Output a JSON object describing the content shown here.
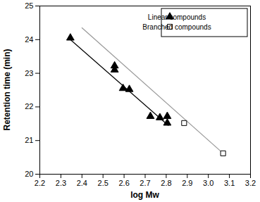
{
  "chart_data": {
    "type": "scatter",
    "x_label": "log Mw",
    "y_label": "Retention time (min)",
    "xlim": [
      2.2,
      3.2
    ],
    "xticks": [
      2.2,
      2.3,
      2.4,
      2.5,
      2.6,
      2.7,
      2.8,
      2.9,
      {
        "value": 3,
        "label": "3.0"
      },
      3.1,
      3.2
    ],
    "ylim": [
      20,
      25
    ],
    "yticks": [
      20,
      21,
      22,
      23,
      24,
      25
    ],
    "grid": false,
    "legend": "upper right",
    "series": [
      {
        "name": "Linear compounds",
        "marker": "triangle",
        "color": "#000000",
        "x": [
          2.345,
          2.555,
          2.555,
          2.595,
          2.625,
          2.725,
          2.77,
          2.805,
          2.805
        ],
        "values": [
          24.05,
          23.22,
          23.1,
          22.55,
          22.52,
          21.72,
          21.68,
          21.72,
          21.52
        ]
      },
      {
        "name": "Branched compounds",
        "marker": "open_square",
        "color": "#000000",
        "x": [
          2.885,
          3.07
        ],
        "values": [
          21.52,
          20.62
        ]
      }
    ],
    "fit_lines": [
      {
        "color": "#000000",
        "x": [
          2.345,
          2.81
        ],
        "values": [
          24.0,
          21.45
        ]
      },
      {
        "color": "#999999",
        "x": [
          2.4,
          3.07
        ],
        "values": [
          24.35,
          20.62
        ]
      }
    ]
  }
}
